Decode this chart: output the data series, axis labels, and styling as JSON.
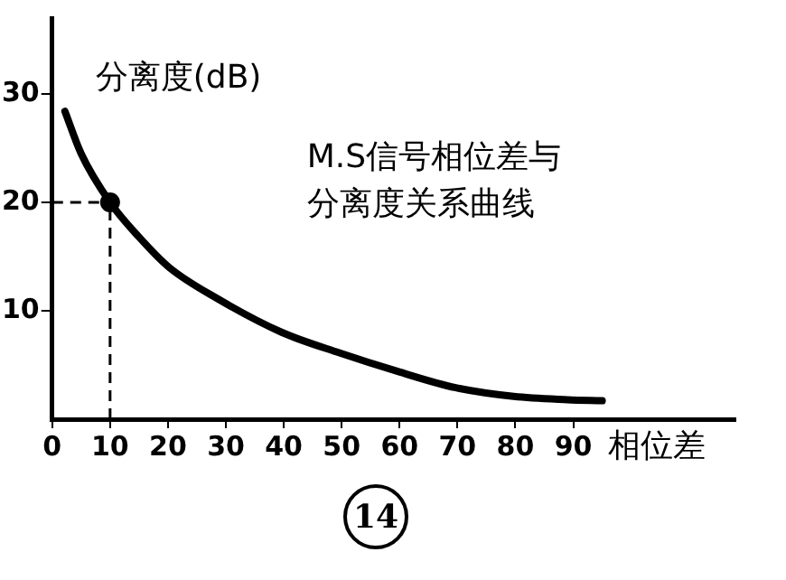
{
  "chart_data": {
    "type": "line",
    "ylabel": "分离度(dB)",
    "xlabel": "相位差",
    "annotations": [
      "M.S信号相位差与",
      "分离度关系曲线",
      "14"
    ],
    "series": [
      {
        "color": "#000000",
        "x": [
          2.2,
          5,
          10,
          15,
          20.2,
          28.6,
          39.7,
          49.7,
          59.7,
          69.7,
          79.7,
          89,
          95
        ],
        "values": [
          28.4,
          24.5,
          20,
          16.8,
          14,
          11.1,
          8,
          6.1,
          4.4,
          2.9,
          2.1,
          1.8,
          1.7
        ]
      },
      {
        "type": "scatter",
        "color": "#000000",
        "marker": "circle",
        "x": [
          10
        ],
        "values": [
          20
        ]
      }
    ],
    "xlim": [
      0,
      118
    ],
    "xticks": [
      0,
      10,
      20,
      30,
      40,
      50,
      60,
      70,
      80,
      90
    ],
    "ylim": [
      0,
      37
    ],
    "yticks": [
      10,
      20,
      30
    ],
    "ref_lines": [
      {
        "axis": "x",
        "value": 10,
        "line_style": "dashed"
      },
      {
        "axis": "y",
        "value": 20,
        "line_style": "dashed"
      }
    ],
    "grid": false,
    "legend": false,
    "marker": "none",
    "line_style": "solid"
  }
}
